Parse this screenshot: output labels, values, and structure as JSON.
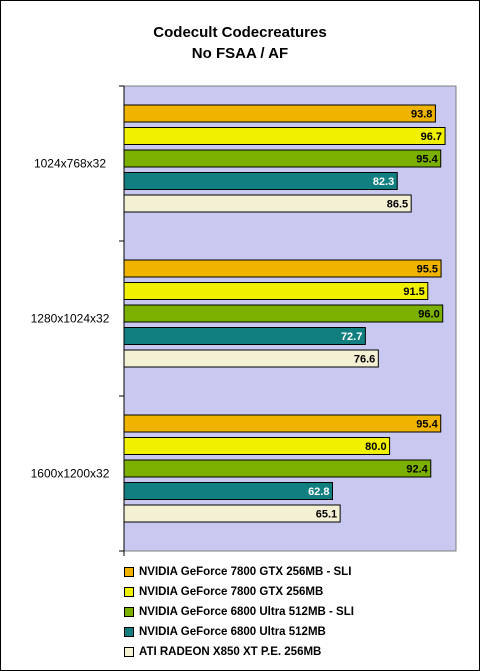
{
  "chart_data": {
    "type": "bar",
    "orientation": "horizontal",
    "title": "Codecult Codecreatures",
    "subtitle": "No FSAA / AF",
    "categories": [
      "1024x768x32",
      "1280x1024x32",
      "1600x1200x32"
    ],
    "xlim": [
      0,
      100
    ],
    "grid": false,
    "legend_position": "bottom",
    "series": [
      {
        "name": "NVIDIA GeForce 7800 GTX 256MB - SLI",
        "values": [
          93.8,
          95.5,
          95.4
        ],
        "color": "#f0b400",
        "label_color": "#000000"
      },
      {
        "name": "NVIDIA GeForce 7800 GTX 256MB",
        "values": [
          96.7,
          91.5,
          80.0
        ],
        "color": "#f0f000",
        "label_color": "#000000"
      },
      {
        "name": "NVIDIA GeForce 6800 Ultra 512MB - SLI",
        "values": [
          95.4,
          96.0,
          92.4
        ],
        "color": "#7cb000",
        "label_color": "#000000"
      },
      {
        "name": "NVIDIA GeForce 6800 Ultra 512MB",
        "values": [
          82.3,
          72.7,
          62.8
        ],
        "color": "#117f7f",
        "label_color": "#ffffff"
      },
      {
        "name": "ATI RADEON X850 XT P.E. 256MB",
        "values": [
          86.5,
          76.6,
          65.1
        ],
        "color": "#f4f0d4",
        "label_color": "#000000"
      }
    ],
    "value_labels": [
      [
        "93.8",
        "96.7",
        "95.4",
        "82.3",
        "86.5"
      ],
      [
        "95.5",
        "91.5",
        "96.0",
        "72.7",
        "76.6"
      ],
      [
        "95.4",
        "80.0",
        "92.4",
        "62.8",
        "65.1"
      ]
    ],
    "plot_background": "#c8c8f0"
  }
}
